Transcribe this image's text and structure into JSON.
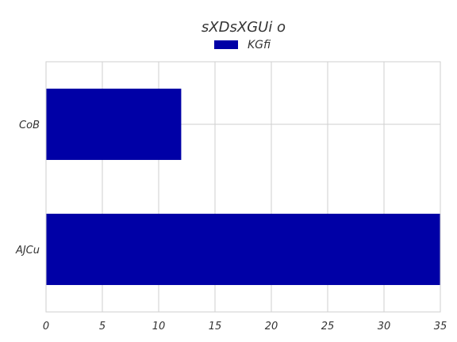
{
  "chart_data": {
    "type": "bar",
    "orientation": "horizontal",
    "title": "sXDsXGUi o",
    "categories": [
      "CoB",
      "AJCu"
    ],
    "series": [
      {
        "name": "KGfi",
        "values": [
          12,
          35
        ],
        "color": "#0000a6"
      }
    ],
    "xlim": [
      0,
      35
    ],
    "xticks": [
      0,
      5,
      10,
      15,
      20,
      25,
      30,
      35
    ],
    "grid": true,
    "legend_position": "top-center"
  }
}
